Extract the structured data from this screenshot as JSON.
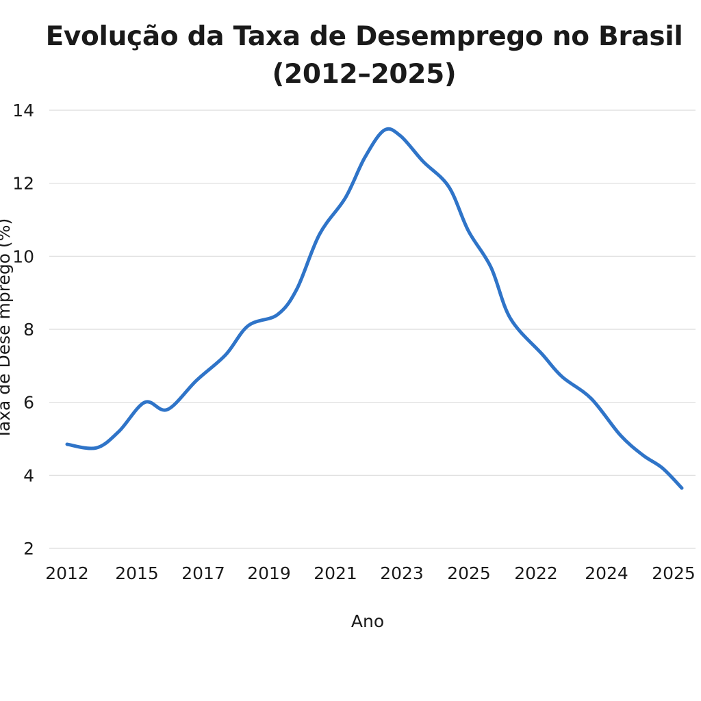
{
  "title": {
    "line1": "Evolução da Taxa de Desemprego no Brasil",
    "line2": "(2012–2025)"
  },
  "chart_data": {
    "type": "line",
    "title": "Evolução da Taxa de Desemprego no Brasil (2012–2025)",
    "xlabel": "Ano",
    "ylabel": "Taxa de Dese mprego (%)",
    "categories": [
      "2012",
      "2015",
      "2017",
      "2019",
      "2021",
      "2023",
      "2025",
      "2022",
      "2024",
      "2025"
    ],
    "yticks": [
      2,
      4,
      6,
      8,
      10,
      12,
      14
    ],
    "ylim": [
      2,
      14
    ],
    "grid": true,
    "color": "#2f74c8",
    "points": [
      {
        "x": 0.0,
        "y": 4.85
      },
      {
        "x": 0.45,
        "y": 4.75
      },
      {
        "x": 0.8,
        "y": 5.2
      },
      {
        "x": 1.2,
        "y": 6.0
      },
      {
        "x": 1.55,
        "y": 5.8
      },
      {
        "x": 2.0,
        "y": 6.6
      },
      {
        "x": 2.45,
        "y": 7.3
      },
      {
        "x": 2.8,
        "y": 8.1
      },
      {
        "x": 3.25,
        "y": 8.4
      },
      {
        "x": 3.55,
        "y": 9.1
      },
      {
        "x": 3.9,
        "y": 10.6
      },
      {
        "x": 4.3,
        "y": 11.6
      },
      {
        "x": 4.6,
        "y": 12.7
      },
      {
        "x": 4.9,
        "y": 13.45
      },
      {
        "x": 5.15,
        "y": 13.3
      },
      {
        "x": 5.5,
        "y": 12.6
      },
      {
        "x": 5.9,
        "y": 11.9
      },
      {
        "x": 6.2,
        "y": 10.7
      },
      {
        "x": 6.55,
        "y": 9.7
      },
      {
        "x": 6.85,
        "y": 8.3
      },
      {
        "x": 7.35,
        "y": 7.3
      },
      {
        "x": 7.65,
        "y": 6.7
      },
      {
        "x": 8.1,
        "y": 6.1
      },
      {
        "x": 8.55,
        "y": 5.1
      },
      {
        "x": 8.9,
        "y": 4.55
      },
      {
        "x": 9.2,
        "y": 4.2
      },
      {
        "x": 9.5,
        "y": 3.65
      }
    ]
  }
}
